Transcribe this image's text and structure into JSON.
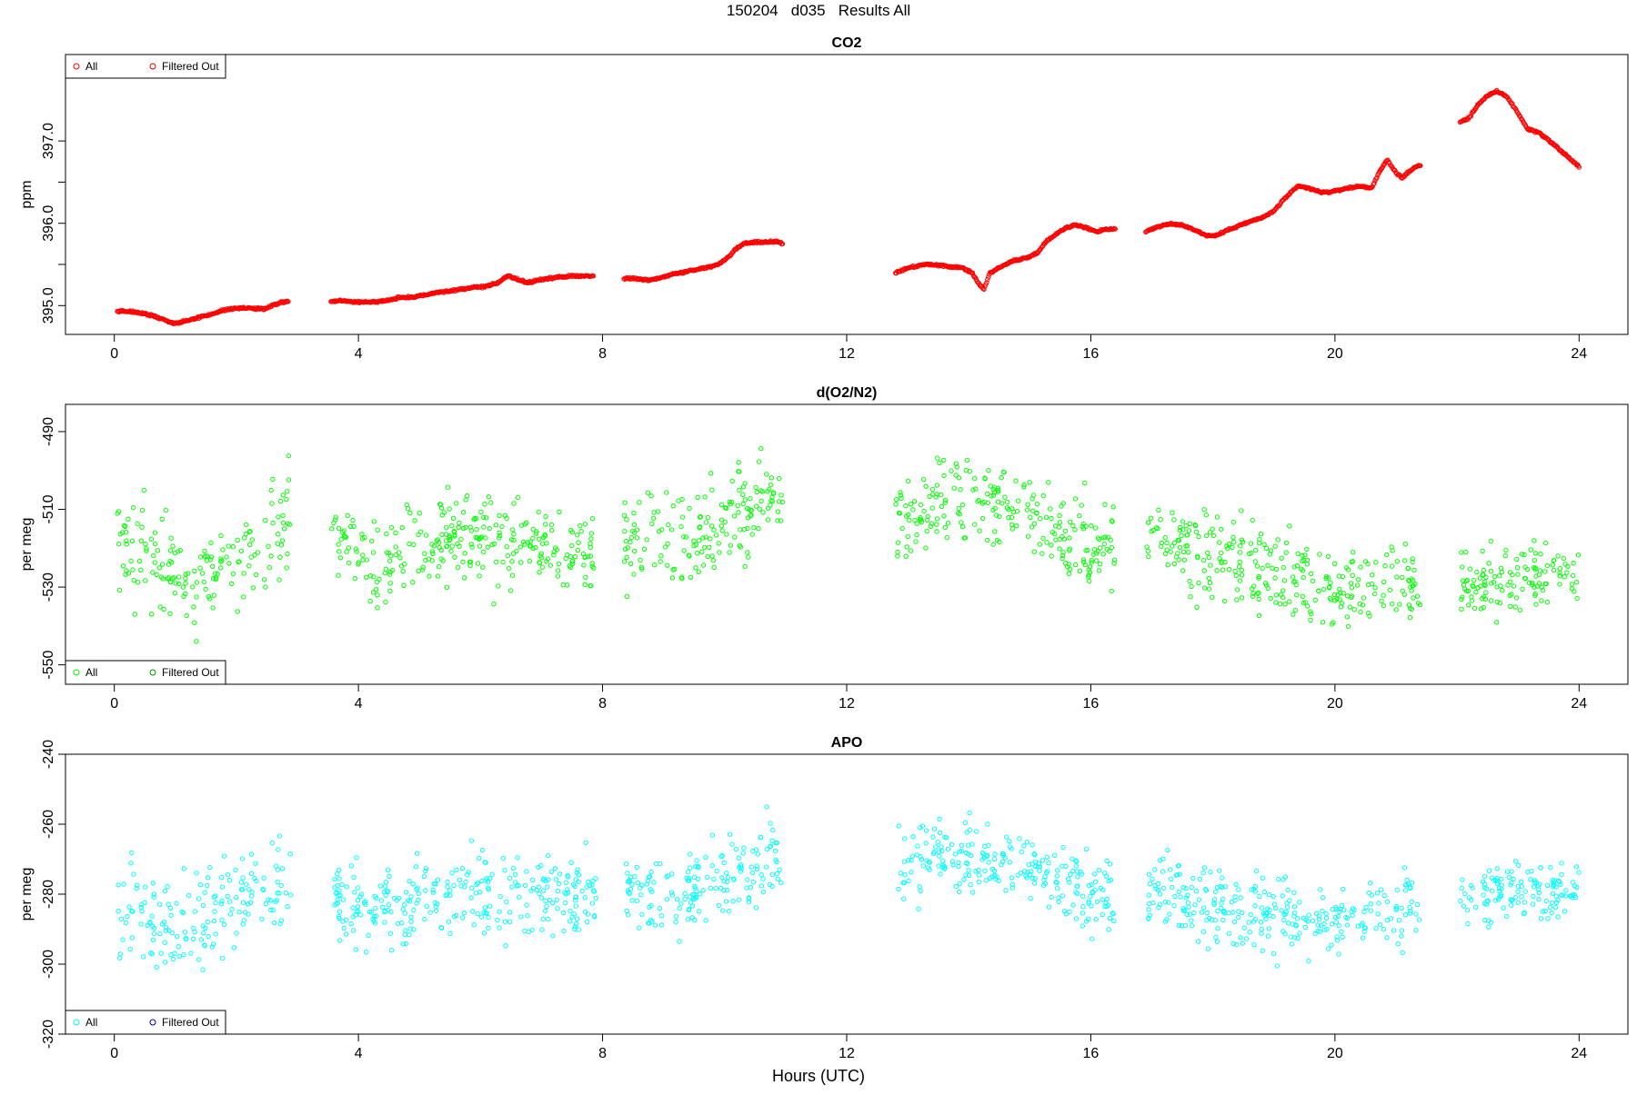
{
  "figure": {
    "title": "150204   d035   Results All",
    "xlabel": "Hours (UTC)"
  },
  "colors": {
    "co2": "#ff0000",
    "co2_filtered": "#cc0000",
    "o2n2": "#00ff00",
    "o2n2_filtered": "#009900",
    "apo": "#00ffff",
    "apo_filtered": "#000099"
  },
  "chart_data": [
    {
      "type": "scatter",
      "title": "CO2",
      "xlabel": "",
      "ylabel": "ppm",
      "xlim": [
        -0.8,
        24.8
      ],
      "ylim": [
        394.65,
        398.05
      ],
      "xticks": [
        "0",
        "4",
        "8",
        "12",
        "16",
        "20",
        "24"
      ],
      "yticks": [
        "395.0",
        "396.0",
        "397.0"
      ],
      "legend": {
        "placement": "top-left",
        "entries": [
          "All",
          "Filtered Out"
        ]
      },
      "series": [
        {
          "name": "All",
          "segments": [
            [
              [
                0.05,
                394.93
              ],
              [
                0.3,
                394.93
              ],
              [
                0.5,
                394.9
              ],
              [
                0.7,
                394.86
              ],
              [
                0.9,
                394.8
              ],
              [
                1.0,
                394.78
              ],
              [
                1.2,
                394.82
              ],
              [
                1.4,
                394.86
              ],
              [
                1.6,
                394.9
              ],
              [
                1.8,
                394.95
              ],
              [
                2.0,
                394.97
              ],
              [
                2.2,
                394.97
              ],
              [
                2.45,
                394.96
              ],
              [
                2.6,
                395.0
              ],
              [
                2.75,
                395.04
              ],
              [
                2.85,
                395.05
              ]
            ],
            [
              [
                3.55,
                395.05
              ],
              [
                3.7,
                395.06
              ],
              [
                3.9,
                395.05
              ],
              [
                4.1,
                395.04
              ],
              [
                4.3,
                395.05
              ],
              [
                4.5,
                395.07
              ],
              [
                4.7,
                395.1
              ],
              [
                4.9,
                395.1
              ],
              [
                5.1,
                395.13
              ],
              [
                5.3,
                395.16
              ],
              [
                5.5,
                395.18
              ],
              [
                5.7,
                395.2
              ],
              [
                5.9,
                395.22
              ],
              [
                6.1,
                395.24
              ],
              [
                6.3,
                395.28
              ],
              [
                6.45,
                395.36
              ],
              [
                6.6,
                395.32
              ],
              [
                6.75,
                395.28
              ],
              [
                6.9,
                395.3
              ],
              [
                7.1,
                395.33
              ],
              [
                7.3,
                395.35
              ],
              [
                7.5,
                395.36
              ],
              [
                7.7,
                395.36
              ],
              [
                7.85,
                395.36
              ]
            ],
            [
              [
                8.35,
                395.33
              ],
              [
                8.55,
                395.33
              ],
              [
                8.75,
                395.31
              ],
              [
                8.95,
                395.34
              ],
              [
                9.15,
                395.38
              ],
              [
                9.35,
                395.41
              ],
              [
                9.55,
                395.44
              ],
              [
                9.75,
                395.47
              ],
              [
                9.9,
                395.5
              ],
              [
                10.05,
                395.58
              ],
              [
                10.2,
                395.7
              ],
              [
                10.35,
                395.76
              ],
              [
                10.5,
                395.77
              ],
              [
                10.7,
                395.77
              ],
              [
                10.85,
                395.78
              ],
              [
                10.95,
                395.75
              ]
            ],
            [
              [
                12.8,
                395.4
              ],
              [
                12.95,
                395.44
              ],
              [
                13.1,
                395.47
              ],
              [
                13.3,
                395.5
              ],
              [
                13.5,
                395.49
              ],
              [
                13.7,
                395.47
              ],
              [
                13.9,
                395.46
              ],
              [
                14.05,
                395.4
              ],
              [
                14.15,
                395.28
              ],
              [
                14.25,
                395.2
              ],
              [
                14.35,
                395.4
              ],
              [
                14.55,
                395.48
              ],
              [
                14.75,
                395.55
              ],
              [
                14.95,
                395.58
              ],
              [
                15.1,
                395.63
              ],
              [
                15.3,
                395.8
              ],
              [
                15.45,
                395.88
              ],
              [
                15.6,
                395.95
              ],
              [
                15.75,
                395.98
              ],
              [
                15.9,
                395.95
              ],
              [
                16.1,
                395.9
              ],
              [
                16.25,
                395.93
              ],
              [
                16.4,
                395.93
              ]
            ],
            [
              [
                16.9,
                395.9
              ],
              [
                17.1,
                395.96
              ],
              [
                17.3,
                395.99
              ],
              [
                17.5,
                395.98
              ],
              [
                17.7,
                395.92
              ],
              [
                17.9,
                395.85
              ],
              [
                18.05,
                395.85
              ],
              [
                18.25,
                395.92
              ],
              [
                18.45,
                395.98
              ],
              [
                18.65,
                396.03
              ],
              [
                18.85,
                396.08
              ],
              [
                19.0,
                396.15
              ],
              [
                19.2,
                396.32
              ],
              [
                19.4,
                396.45
              ],
              [
                19.55,
                396.43
              ],
              [
                19.75,
                396.38
              ],
              [
                19.95,
                396.38
              ],
              [
                20.15,
                396.42
              ],
              [
                20.4,
                396.45
              ],
              [
                20.6,
                396.43
              ],
              [
                20.7,
                396.58
              ],
              [
                20.85,
                396.77
              ],
              [
                21.0,
                396.62
              ],
              [
                21.1,
                396.55
              ],
              [
                21.3,
                396.68
              ],
              [
                21.4,
                396.7
              ]
            ],
            [
              [
                22.05,
                397.23
              ],
              [
                22.2,
                397.28
              ],
              [
                22.35,
                397.45
              ],
              [
                22.5,
                397.55
              ],
              [
                22.65,
                397.6
              ],
              [
                22.8,
                397.55
              ],
              [
                22.95,
                397.4
              ],
              [
                23.15,
                397.15
              ],
              [
                23.35,
                397.1
              ],
              [
                23.55,
                396.98
              ],
              [
                23.75,
                396.85
              ],
              [
                23.95,
                396.72
              ],
              [
                24.0,
                396.68
              ]
            ]
          ]
        },
        {
          "name": "Filtered Out",
          "segments": []
        }
      ]
    },
    {
      "type": "scatter",
      "title": "d(O2/N2)",
      "xlabel": "",
      "ylabel": "per meg",
      "xlim": [
        -0.8,
        24.8
      ],
      "ylim": [
        -555,
        -483
      ],
      "xticks": [
        "0",
        "4",
        "8",
        "12",
        "16",
        "20",
        "24"
      ],
      "yticks": [
        "-490",
        "-510",
        "-530",
        "-550"
      ],
      "legend": {
        "placement": "bottom-left",
        "entries": [
          "All",
          "Filtered Out"
        ]
      },
      "series": [
        {
          "name": "All",
          "segments": [
            {
              "x": [
                0.05,
                2.9
              ],
              "trend": [
                [
                  0.05,
                  -519
                ],
                [
                  1.2,
                  -529
                ],
                [
                  2.0,
                  -521
                ],
                [
                  2.9,
                  -513
                ]
              ],
              "spread": 12,
              "n": 170
            },
            {
              "x": [
                3.55,
                7.9
              ],
              "trend": [
                [
                  3.55,
                  -514
                ],
                [
                  4.2,
                  -524
                ],
                [
                  5.5,
                  -517
                ],
                [
                  7.9,
                  -520
                ]
              ],
              "spread": 10,
              "n": 290
            },
            {
              "x": [
                8.35,
                10.95
              ],
              "trend": [
                [
                  8.35,
                  -516
                ],
                [
                  9.2,
                  -520
                ],
                [
                  10.2,
                  -511
                ],
                [
                  10.95,
                  -508
                ]
              ],
              "spread": 11,
              "n": 170
            },
            {
              "x": [
                12.8,
                16.4
              ],
              "trend": [
                [
                  12.8,
                  -512
                ],
                [
                  13.7,
                  -507
                ],
                [
                  15.0,
                  -511
                ],
                [
                  16.4,
                  -522
                ]
              ],
              "spread": 10,
              "n": 240
            },
            {
              "x": [
                16.9,
                21.4
              ],
              "trend": [
                [
                  16.9,
                  -517
                ],
                [
                  18.5,
                  -524
                ],
                [
                  20.0,
                  -531
                ],
                [
                  21.4,
                  -527
                ]
              ],
              "spread": 10,
              "n": 290
            },
            {
              "x": [
                22.05,
                24.0
              ],
              "trend": [
                [
                  22.05,
                  -529
                ],
                [
                  23.0,
                  -528
                ],
                [
                  24.0,
                  -526
                ]
              ],
              "spread": 8,
              "n": 130
            }
          ]
        },
        {
          "name": "Filtered Out",
          "segments": []
        }
      ]
    },
    {
      "type": "scatter",
      "title": "APO",
      "xlabel": "Hours (UTC)",
      "ylabel": "per meg",
      "xlim": [
        -0.8,
        24.8
      ],
      "ylim": [
        -320,
        -240
      ],
      "xticks": [
        "0",
        "4",
        "8",
        "12",
        "16",
        "20",
        "24"
      ],
      "yticks": [
        "-240",
        "-260",
        "-280",
        "-300",
        "-320"
      ],
      "legend": {
        "placement": "bottom-left",
        "entries": [
          "All",
          "Filtered Out"
        ]
      },
      "series": [
        {
          "name": "All",
          "segments": [
            {
              "x": [
                0.05,
                2.9
              ],
              "trend": [
                [
                  0.05,
                  -283
                ],
                [
                  1.2,
                  -291
                ],
                [
                  2.0,
                  -282
                ],
                [
                  2.9,
                  -276
                ]
              ],
              "spread": 12,
              "n": 170
            },
            {
              "x": [
                3.55,
                7.9
              ],
              "trend": [
                [
                  3.55,
                  -280
                ],
                [
                  4.2,
                  -287
                ],
                [
                  5.5,
                  -279
                ],
                [
                  7.9,
                  -281
                ]
              ],
              "spread": 10,
              "n": 290
            },
            {
              "x": [
                8.35,
                10.95
              ],
              "trend": [
                [
                  8.35,
                  -278
                ],
                [
                  9.2,
                  -282
                ],
                [
                  10.2,
                  -272
                ],
                [
                  10.95,
                  -269
                ]
              ],
              "spread": 11,
              "n": 170
            },
            {
              "x": [
                12.8,
                16.4
              ],
              "trend": [
                [
                  12.8,
                  -272
                ],
                [
                  13.7,
                  -268
                ],
                [
                  15.0,
                  -272
                ],
                [
                  16.4,
                  -282
                ]
              ],
              "spread": 10,
              "n": 240
            },
            {
              "x": [
                16.9,
                21.4
              ],
              "trend": [
                [
                  16.9,
                  -278
                ],
                [
                  18.5,
                  -284
                ],
                [
                  20.0,
                  -288
                ],
                [
                  21.4,
                  -283
                ]
              ],
              "spread": 10,
              "n": 290
            },
            {
              "x": [
                22.05,
                24.0
              ],
              "trend": [
                [
                  22.05,
                  -281
                ],
                [
                  23.0,
                  -279
                ],
                [
                  24.0,
                  -280
                ]
              ],
              "spread": 8,
              "n": 130
            }
          ]
        },
        {
          "name": "Filtered Out",
          "segments": []
        }
      ]
    }
  ]
}
